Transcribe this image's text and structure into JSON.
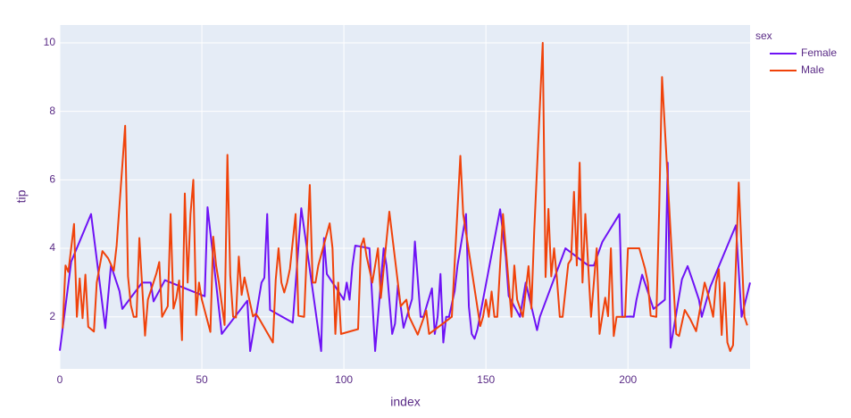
{
  "chart_data": {
    "type": "line",
    "x_label": "index",
    "y_label": "tip",
    "legend_title": "sex",
    "legend": "right",
    "grid": true,
    "xlim": [
      0,
      243
    ],
    "ylim": [
      0.48,
      10.52
    ],
    "xticks": [
      0,
      50,
      100,
      150,
      200
    ],
    "yticks": [
      2,
      4,
      6,
      8,
      10
    ],
    "series": [
      {
        "name": "Female",
        "color": "#6e12f5",
        "x": [
          0,
          4,
          11,
          14,
          16,
          18,
          21,
          22,
          29,
          32,
          33,
          37,
          51,
          52,
          57,
          66,
          67,
          71,
          72,
          73,
          74,
          82,
          85,
          92,
          93,
          94,
          100,
          101,
          102,
          103,
          104,
          109,
          111,
          114,
          115,
          117,
          118,
          119,
          121,
          124,
          125,
          127,
          128,
          131,
          132,
          133,
          134,
          135,
          136,
          137,
          139,
          140,
          143,
          144,
          145,
          146,
          147,
          155,
          157,
          158,
          162,
          164,
          168,
          169,
          178,
          186,
          188,
          191,
          197,
          198,
          201,
          202,
          203,
          205,
          209,
          213,
          214,
          215,
          219,
          221,
          223,
          225,
          226,
          229,
          238,
          240,
          243
        ],
        "values": [
          1.01,
          3.61,
          5.0,
          3.02,
          1.67,
          3.5,
          2.75,
          2.23,
          3.0,
          3.0,
          2.45,
          3.07,
          2.6,
          5.2,
          1.5,
          2.47,
          1.0,
          3.0,
          3.14,
          5.0,
          2.2,
          1.83,
          5.17,
          1.0,
          4.3,
          3.25,
          2.5,
          3.0,
          2.5,
          3.48,
          4.08,
          4.0,
          1.0,
          4.0,
          3.5,
          1.5,
          1.8,
          2.92,
          1.68,
          2.52,
          4.2,
          2.0,
          2.0,
          2.83,
          1.5,
          2.0,
          3.25,
          1.25,
          2.0,
          2.0,
          2.75,
          3.5,
          5.0,
          2.3,
          1.5,
          1.36,
          1.63,
          5.14,
          3.75,
          2.61,
          2.0,
          3.0,
          1.61,
          2.0,
          4.0,
          3.5,
          3.5,
          4.19,
          5.0,
          2.0,
          2.01,
          2.0,
          2.5,
          3.23,
          2.23,
          2.5,
          6.5,
          1.1,
          3.09,
          3.48,
          3.0,
          2.5,
          2.0,
          2.88,
          4.67,
          2.0,
          3.0
        ]
      },
      {
        "name": "Male",
        "color": "#f0420a",
        "x": [
          1,
          2,
          3,
          5,
          6,
          7,
          8,
          9,
          10,
          12,
          13,
          15,
          17,
          19,
          20,
          23,
          24,
          25,
          26,
          27,
          28,
          30,
          31,
          34,
          35,
          36,
          38,
          39,
          40,
          41,
          42,
          43,
          44,
          45,
          46,
          47,
          48,
          49,
          50,
          53,
          54,
          55,
          56,
          58,
          59,
          60,
          61,
          62,
          63,
          64,
          65,
          68,
          69,
          70,
          75,
          76,
          77,
          78,
          79,
          80,
          81,
          83,
          84,
          86,
          87,
          88,
          89,
          90,
          91,
          95,
          96,
          97,
          98,
          99,
          105,
          106,
          107,
          108,
          110,
          112,
          113,
          116,
          120,
          122,
          123,
          126,
          129,
          130,
          138,
          141,
          142,
          148,
          149,
          150,
          151,
          152,
          153,
          154,
          156,
          159,
          160,
          161,
          163,
          165,
          166,
          167,
          170,
          171,
          172,
          173,
          174,
          175,
          176,
          177,
          179,
          180,
          181,
          182,
          183,
          184,
          185,
          187,
          189,
          190,
          192,
          193,
          194,
          195,
          196,
          199,
          200,
          204,
          206,
          207,
          208,
          210,
          211,
          212,
          216,
          217,
          218,
          220,
          222,
          224,
          227,
          228,
          230,
          231,
          232,
          233,
          234,
          235,
          236,
          237,
          239,
          241,
          242
        ],
        "values": [
          1.66,
          3.5,
          3.31,
          4.71,
          2.0,
          3.12,
          1.96,
          3.23,
          1.71,
          1.57,
          3.0,
          3.92,
          3.71,
          3.35,
          4.08,
          7.58,
          3.18,
          2.34,
          2.0,
          2.0,
          4.3,
          1.45,
          2.5,
          3.27,
          3.6,
          2.0,
          2.31,
          5.0,
          2.24,
          2.54,
          3.06,
          1.32,
          5.6,
          3.0,
          5.0,
          6.0,
          2.05,
          3.0,
          2.5,
          1.56,
          4.34,
          3.51,
          3.0,
          1.76,
          6.73,
          3.21,
          2.0,
          1.98,
          3.76,
          2.64,
          3.15,
          2.01,
          2.09,
          1.97,
          1.25,
          3.08,
          4.0,
          3.0,
          2.71,
          3.0,
          3.4,
          5.0,
          2.03,
          2.0,
          4.0,
          5.85,
          3.0,
          3.0,
          3.5,
          4.73,
          4.0,
          1.5,
          3.0,
          1.5,
          1.64,
          4.06,
          4.29,
          3.76,
          3.0,
          4.0,
          2.55,
          5.07,
          2.31,
          2.5,
          2.0,
          1.48,
          2.18,
          1.5,
          2.0,
          6.7,
          5.0,
          1.73,
          2.0,
          2.5,
          2.0,
          2.74,
          2.0,
          2.0,
          5.0,
          2.0,
          3.5,
          2.5,
          2.0,
          3.48,
          2.24,
          4.5,
          10.0,
          3.16,
          5.15,
          3.18,
          4.0,
          3.11,
          2.0,
          2.0,
          3.55,
          3.68,
          5.65,
          3.5,
          6.5,
          3.0,
          5.0,
          2.0,
          4.0,
          1.5,
          2.56,
          2.02,
          4.0,
          1.44,
          2.0,
          2.0,
          4.0,
          4.0,
          3.41,
          3.0,
          2.03,
          2.0,
          5.16,
          9.0,
          3.0,
          1.5,
          1.44,
          2.2,
          1.92,
          1.58,
          3.0,
          2.72,
          2.0,
          3.0,
          3.39,
          1.47,
          3.0,
          1.25,
          1.0,
          1.17,
          5.92,
          2.0,
          1.75
        ]
      }
    ]
  }
}
